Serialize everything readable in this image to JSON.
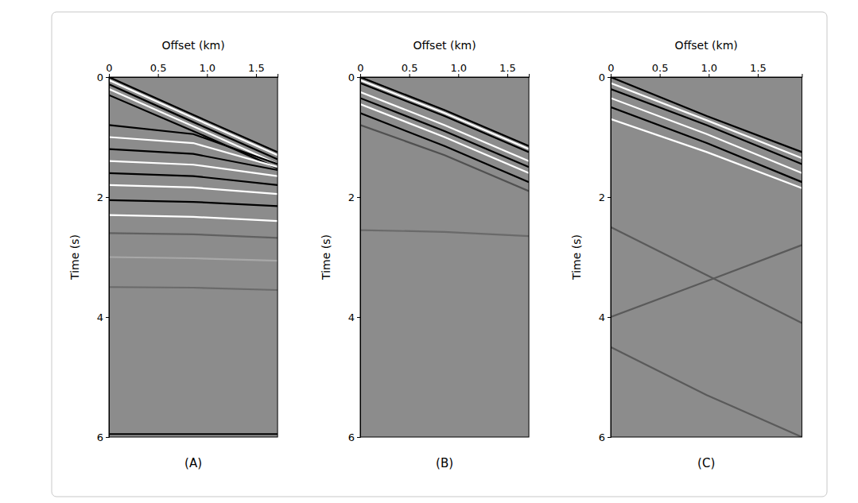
{
  "chart_data": [
    {
      "type": "line",
      "title": "(A)",
      "xlabel": "Offset (km)",
      "ylabel": "Time (s)",
      "x": [
        0,
        0.86,
        1.72
      ],
      "xlim": [
        0,
        1.72
      ],
      "xticks": [
        0,
        0.5,
        {
          "value": 1,
          "label": "1.0"
        },
        1.5
      ],
      "ylim": [
        0,
        6
      ],
      "yticks": [
        0,
        2,
        4,
        6
      ],
      "series": [
        {
          "color": "#000000",
          "values": [
            0,
            0.63,
            1.25
          ]
        },
        {
          "color": "#ffffff",
          "values": [
            0.05,
            0.68,
            1.3
          ]
        },
        {
          "color": "#000000",
          "values": [
            0.12,
            0.75,
            1.37
          ]
        },
        {
          "color": "#ffffff",
          "values": [
            0.2,
            0.82,
            1.45
          ]
        },
        {
          "color": "#000000",
          "values": [
            0.3,
            0.9,
            1.52
          ]
        },
        {
          "color": "#000000",
          "values": [
            0.8,
            0.95,
            1.45
          ]
        },
        {
          "color": "#ffffff",
          "values": [
            1.0,
            1.1,
            1.5
          ]
        },
        {
          "color": "#000000",
          "values": [
            1.2,
            1.28,
            1.55
          ]
        },
        {
          "color": "#ffffff",
          "values": [
            1.4,
            1.46,
            1.65
          ]
        },
        {
          "color": "#000000",
          "values": [
            1.6,
            1.65,
            1.8
          ]
        },
        {
          "color": "#ffffff",
          "values": [
            1.8,
            1.84,
            1.95
          ]
        },
        {
          "color": "#000000",
          "values": [
            2.05,
            2.08,
            2.15
          ]
        },
        {
          "color": "#ffffff",
          "values": [
            2.3,
            2.33,
            2.4
          ]
        },
        {
          "color": "#606060",
          "values": [
            2.6,
            2.62,
            2.68
          ]
        },
        {
          "color": "#a8a8a8",
          "values": [
            3.0,
            3.02,
            3.06
          ]
        },
        {
          "color": "#6a6a6a",
          "values": [
            3.5,
            3.51,
            3.55
          ]
        },
        {
          "color": "#000000",
          "values": [
            5.95,
            5.95,
            5.95
          ]
        }
      ]
    },
    {
      "type": "line",
      "title": "(B)",
      "xlabel": "Offset (km)",
      "ylabel": "Time (s)",
      "x": [
        0,
        0.86,
        1.72
      ],
      "xlim": [
        0,
        1.72
      ],
      "xticks": [
        0,
        0.5,
        {
          "value": 1,
          "label": "1.0"
        },
        1.5
      ],
      "ylim": [
        0,
        6
      ],
      "yticks": [
        0,
        2,
        4,
        6
      ],
      "series": [
        {
          "color": "#000000",
          "values": [
            0,
            0.55,
            1.15
          ]
        },
        {
          "color": "#ffffff",
          "values": [
            0.05,
            0.6,
            1.2
          ]
        },
        {
          "color": "#000000",
          "values": [
            0.1,
            0.65,
            1.25
          ]
        },
        {
          "color": "#ffffff",
          "values": [
            0.25,
            0.8,
            1.4
          ]
        },
        {
          "color": "#000000",
          "values": [
            0.35,
            0.9,
            1.5
          ]
        },
        {
          "color": "#ffffff",
          "values": [
            0.45,
            1.0,
            1.6
          ]
        },
        {
          "color": "#000000",
          "values": [
            0.6,
            1.15,
            1.75
          ]
        },
        {
          "color": "#505050",
          "values": [
            0.8,
            1.3,
            1.9
          ]
        },
        {
          "color": "#6a6a6a",
          "values": [
            2.55,
            2.58,
            2.65
          ]
        }
      ]
    },
    {
      "type": "line",
      "title": "(C)",
      "xlabel": "Offset (km)",
      "ylabel": "Time (s)",
      "x": [
        0,
        0.98,
        1.95
      ],
      "xlim": [
        0,
        1.95
      ],
      "xticks": [
        0,
        0.5,
        {
          "value": 1,
          "label": "1.0"
        },
        1.5
      ],
      "ylim": [
        0,
        6
      ],
      "yticks": [
        0,
        2,
        4,
        6
      ],
      "series": [
        {
          "color": "#000000",
          "values": [
            0,
            0.65,
            1.25
          ]
        },
        {
          "color": "#ffffff",
          "values": [
            0.1,
            0.72,
            1.35
          ]
        },
        {
          "color": "#000000",
          "values": [
            0.2,
            0.8,
            1.45
          ]
        },
        {
          "color": "#ffffff",
          "values": [
            0.35,
            0.95,
            1.6
          ]
        },
        {
          "color": "#000000",
          "values": [
            0.5,
            1.1,
            1.75
          ]
        },
        {
          "color": "#ffffff",
          "values": [
            0.7,
            1.25,
            1.85
          ]
        },
        {
          "color": "#5a5a5a",
          "values": [
            2.5,
            3.3,
            4.1
          ]
        },
        {
          "color": "#5a5a5a",
          "values": [
            4.0,
            3.4,
            2.8
          ]
        },
        {
          "color": "#5a5a5a",
          "values": [
            4.5,
            5.3,
            6.0
          ]
        }
      ]
    }
  ]
}
